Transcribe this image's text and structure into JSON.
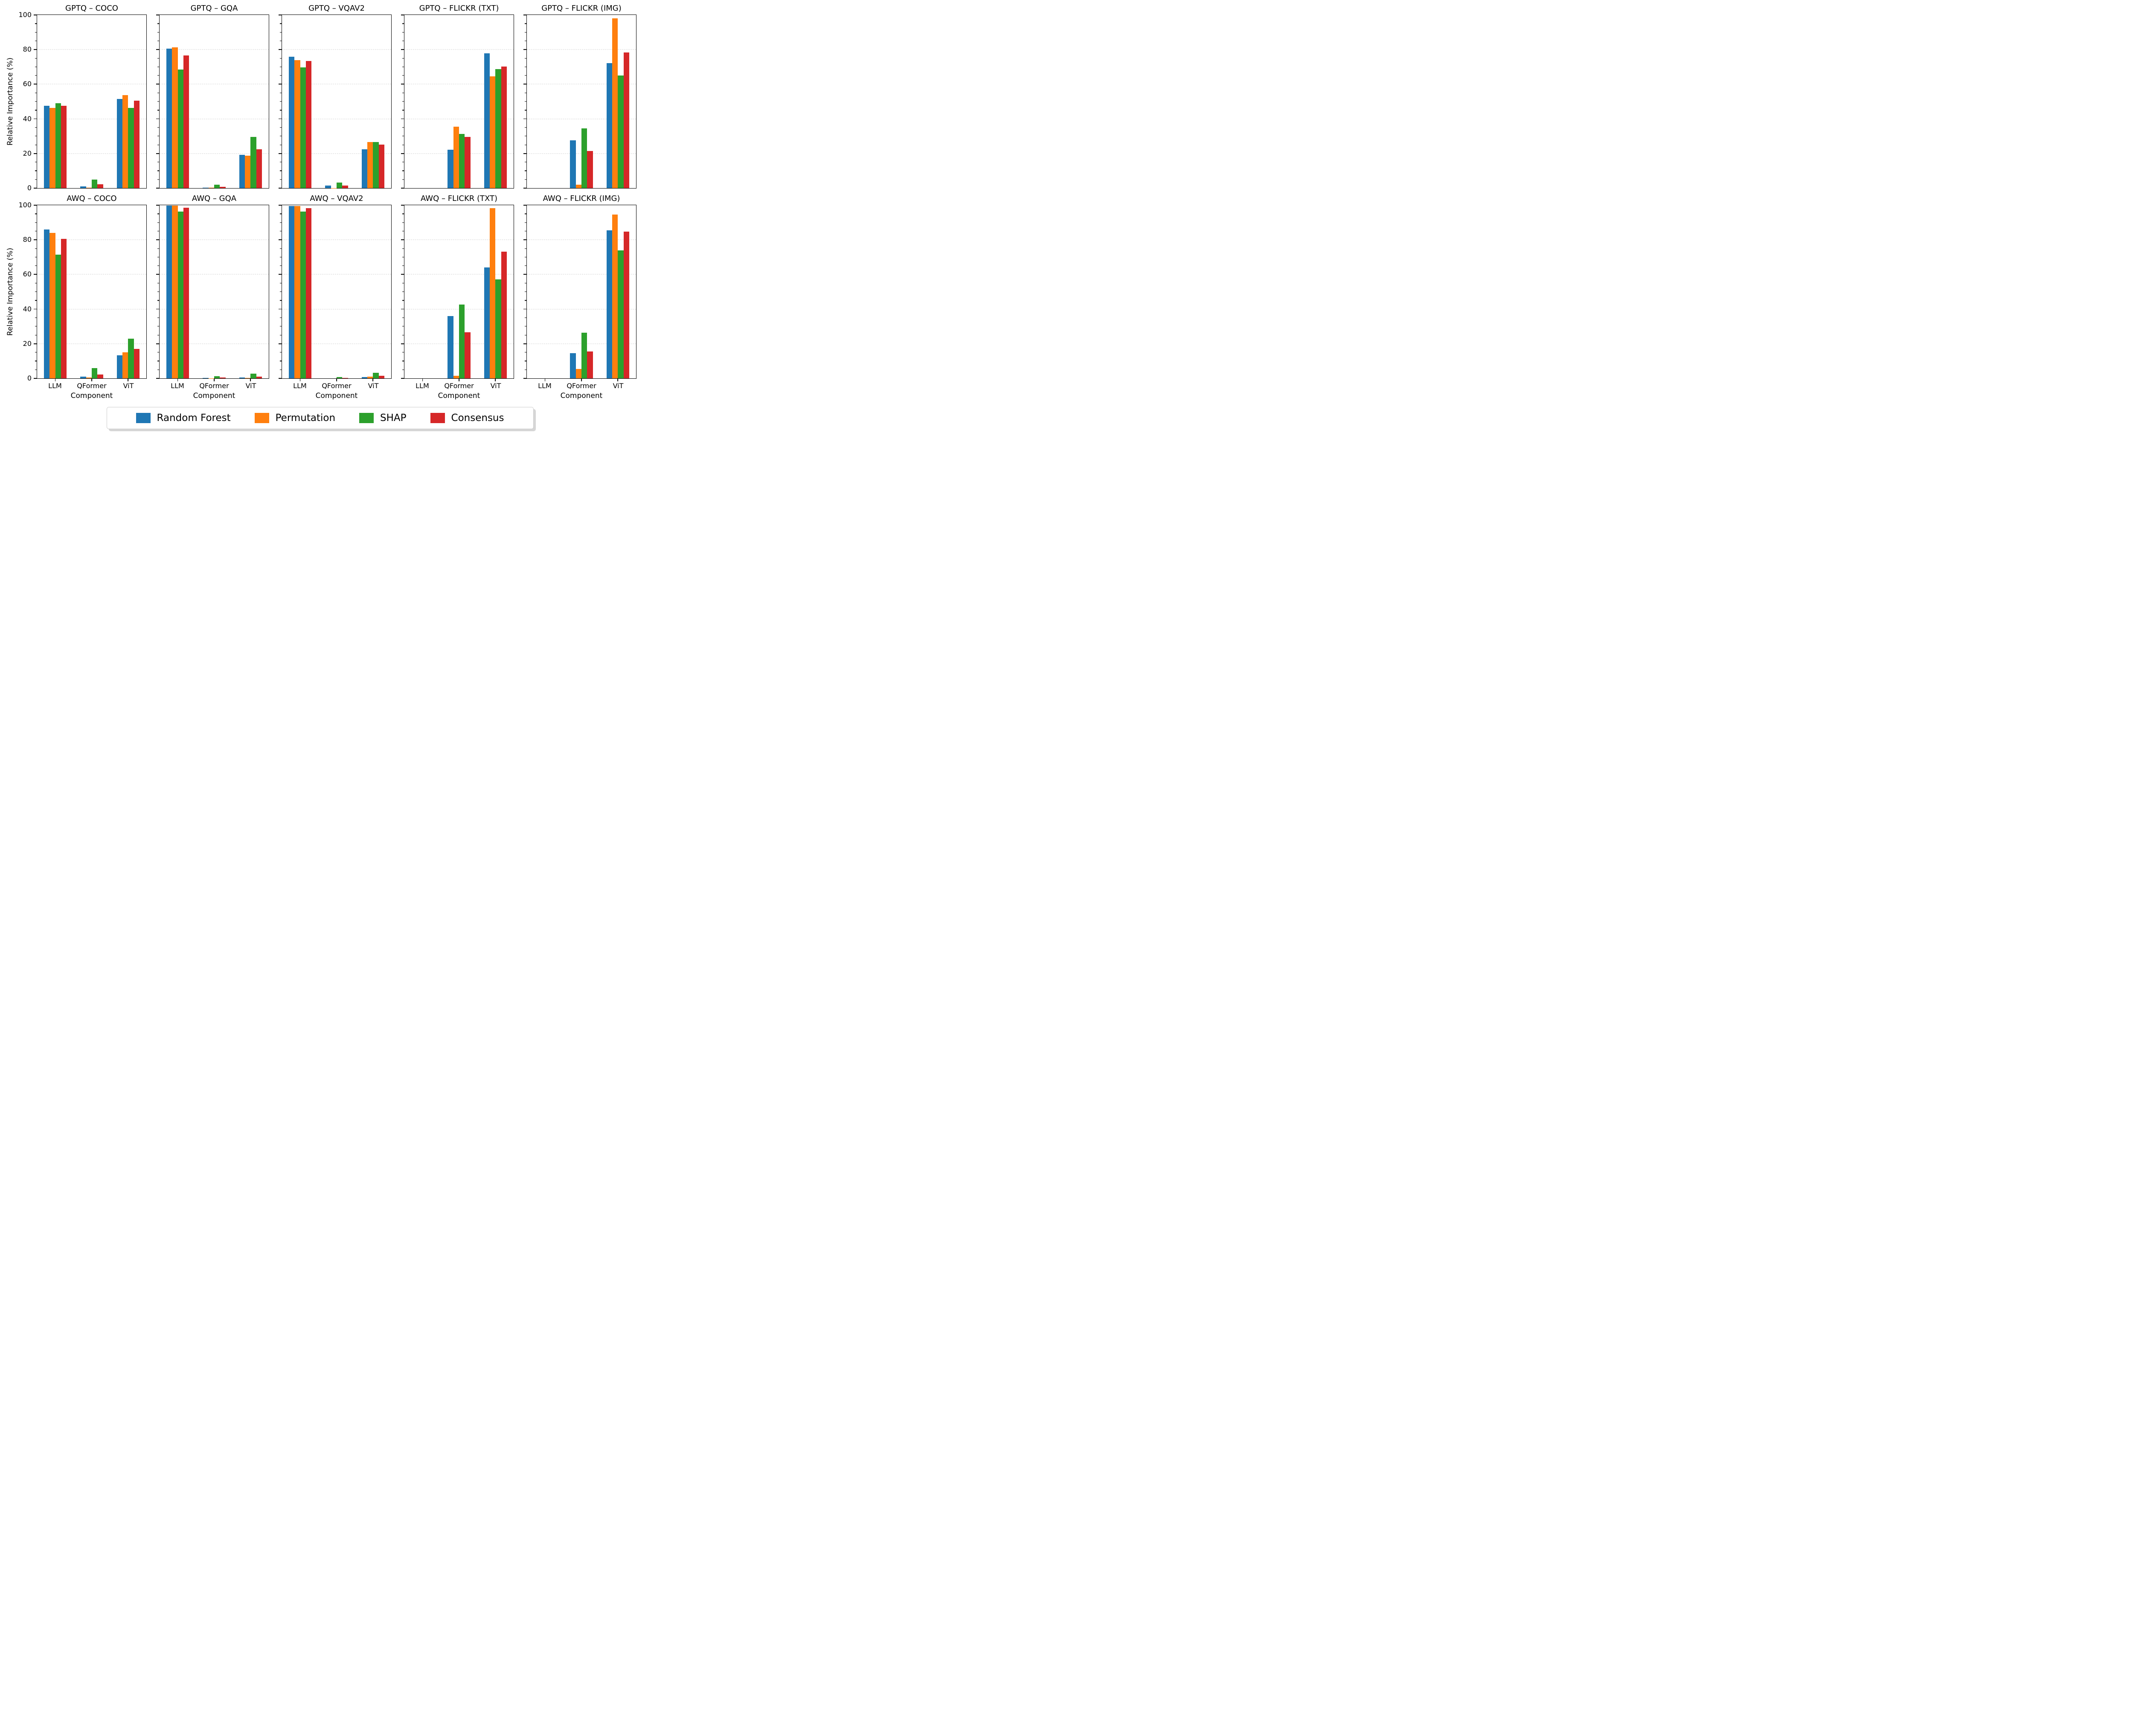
{
  "chart_data": {
    "type": "bar",
    "categories": [
      "LLM",
      "QFormer",
      "ViT"
    ],
    "xlabel": "Component",
    "ylabel": "Relative Importance (%)",
    "ylim": [
      0,
      100
    ],
    "yticks": [
      0,
      20,
      40,
      60,
      80,
      100
    ],
    "grid": "horizontal dashed at 20/40/60/80",
    "legend_position": "bottom-center",
    "legend": [
      {
        "label": "Random Forest",
        "color": "#1f77b4"
      },
      {
        "label": "Permutation",
        "color": "#ff7f0e"
      },
      {
        "label": "SHAP",
        "color": "#2ca02c"
      },
      {
        "label": "Consensus",
        "color": "#d62728"
      }
    ],
    "subplots": [
      {
        "title": "GPTQ – COCO",
        "series": [
          {
            "name": "Random Forest",
            "values": [
              47.5,
              1.0,
              51.5
            ]
          },
          {
            "name": "Permutation",
            "values": [
              46.2,
              0.3,
              53.8
            ]
          },
          {
            "name": "SHAP",
            "values": [
              48.9,
              5.0,
              46.3
            ]
          },
          {
            "name": "Consensus",
            "values": [
              47.6,
              2.1,
              50.5
            ]
          }
        ]
      },
      {
        "title": "GPTQ – GQA",
        "series": [
          {
            "name": "Random Forest",
            "values": [
              80.5,
              0.3,
              19.3
            ]
          },
          {
            "name": "Permutation",
            "values": [
              81.2,
              0.2,
              18.7
            ]
          },
          {
            "name": "SHAP",
            "values": [
              68.4,
              1.9,
              29.5
            ]
          },
          {
            "name": "Consensus",
            "values": [
              76.7,
              0.8,
              22.5
            ]
          }
        ]
      },
      {
        "title": "GPTQ – VQAV2",
        "series": [
          {
            "name": "Random Forest",
            "values": [
              75.9,
              1.5,
              22.5
            ]
          },
          {
            "name": "Permutation",
            "values": [
              73.8,
              0.1,
              26.6
            ]
          },
          {
            "name": "SHAP",
            "values": [
              69.8,
              3.3,
              26.7
            ]
          },
          {
            "name": "Consensus",
            "values": [
              73.3,
              1.4,
              25.2
            ]
          }
        ]
      },
      {
        "title": "GPTQ – FLICKR (TXT)",
        "series": [
          {
            "name": "Random Forest",
            "values": [
              0,
              22.2,
              77.8
            ]
          },
          {
            "name": "Permutation",
            "values": [
              0,
              35.4,
              64.5
            ]
          },
          {
            "name": "SHAP",
            "values": [
              0,
              31.3,
              68.6
            ]
          },
          {
            "name": "Consensus",
            "values": [
              0,
              29.6,
              70.3
            ]
          }
        ]
      },
      {
        "title": "GPTQ – FLICKR (IMG)",
        "series": [
          {
            "name": "Random Forest",
            "values": [
              0,
              27.7,
              72.2
            ]
          },
          {
            "name": "Permutation",
            "values": [
              0,
              1.9,
              98.0
            ]
          },
          {
            "name": "SHAP",
            "values": [
              0,
              34.6,
              65.1
            ]
          },
          {
            "name": "Consensus",
            "values": [
              0,
              21.5,
              78.4
            ]
          }
        ]
      },
      {
        "title": "AWQ – COCO",
        "series": [
          {
            "name": "Random Forest",
            "values": [
              86.0,
              0.9,
              13.2
            ]
          },
          {
            "name": "Permutation",
            "values": [
              84.0,
              0.6,
              15.0
            ]
          },
          {
            "name": "SHAP",
            "values": [
              71.4,
              5.8,
              22.8
            ]
          },
          {
            "name": "Consensus",
            "values": [
              80.5,
              2.3,
              17.1
            ]
          }
        ]
      },
      {
        "title": "AWQ – GQA",
        "series": [
          {
            "name": "Random Forest",
            "values": [
              99.8,
              0.2,
              0.4
            ]
          },
          {
            "name": "Permutation",
            "values": [
              99.7,
              0.1,
              0.3
            ]
          },
          {
            "name": "SHAP",
            "values": [
              96.4,
              1.3,
              2.6
            ]
          },
          {
            "name": "Consensus",
            "values": [
              98.6,
              0.6,
              1.1
            ]
          }
        ]
      },
      {
        "title": "AWQ – VQAV2",
        "series": [
          {
            "name": "Random Forest",
            "values": [
              99.6,
              0.0,
              0.7
            ]
          },
          {
            "name": "Permutation",
            "values": [
              99.5,
              0.0,
              0.9
            ]
          },
          {
            "name": "SHAP",
            "values": [
              96.2,
              0.8,
              3.3
            ]
          },
          {
            "name": "Consensus",
            "values": [
              98.3,
              0.2,
              1.5
            ]
          }
        ]
      },
      {
        "title": "AWQ – FLICKR (TXT)",
        "series": [
          {
            "name": "Random Forest",
            "values": [
              0,
              36.0,
              64.0
            ]
          },
          {
            "name": "Permutation",
            "values": [
              0,
              1.6,
              98.4
            ]
          },
          {
            "name": "SHAP",
            "values": [
              0,
              42.7,
              57.2
            ]
          },
          {
            "name": "Consensus",
            "values": [
              0,
              26.7,
              73.2
            ]
          }
        ]
      },
      {
        "title": "AWQ – FLICKR (IMG)",
        "series": [
          {
            "name": "Random Forest",
            "values": [
              0,
              14.5,
              85.5
            ]
          },
          {
            "name": "Permutation",
            "values": [
              0,
              5.4,
              94.7
            ]
          },
          {
            "name": "SHAP",
            "values": [
              0,
              26.3,
              74.0
            ]
          },
          {
            "name": "Consensus",
            "values": [
              0,
              15.5,
              84.7
            ]
          }
        ]
      }
    ]
  }
}
